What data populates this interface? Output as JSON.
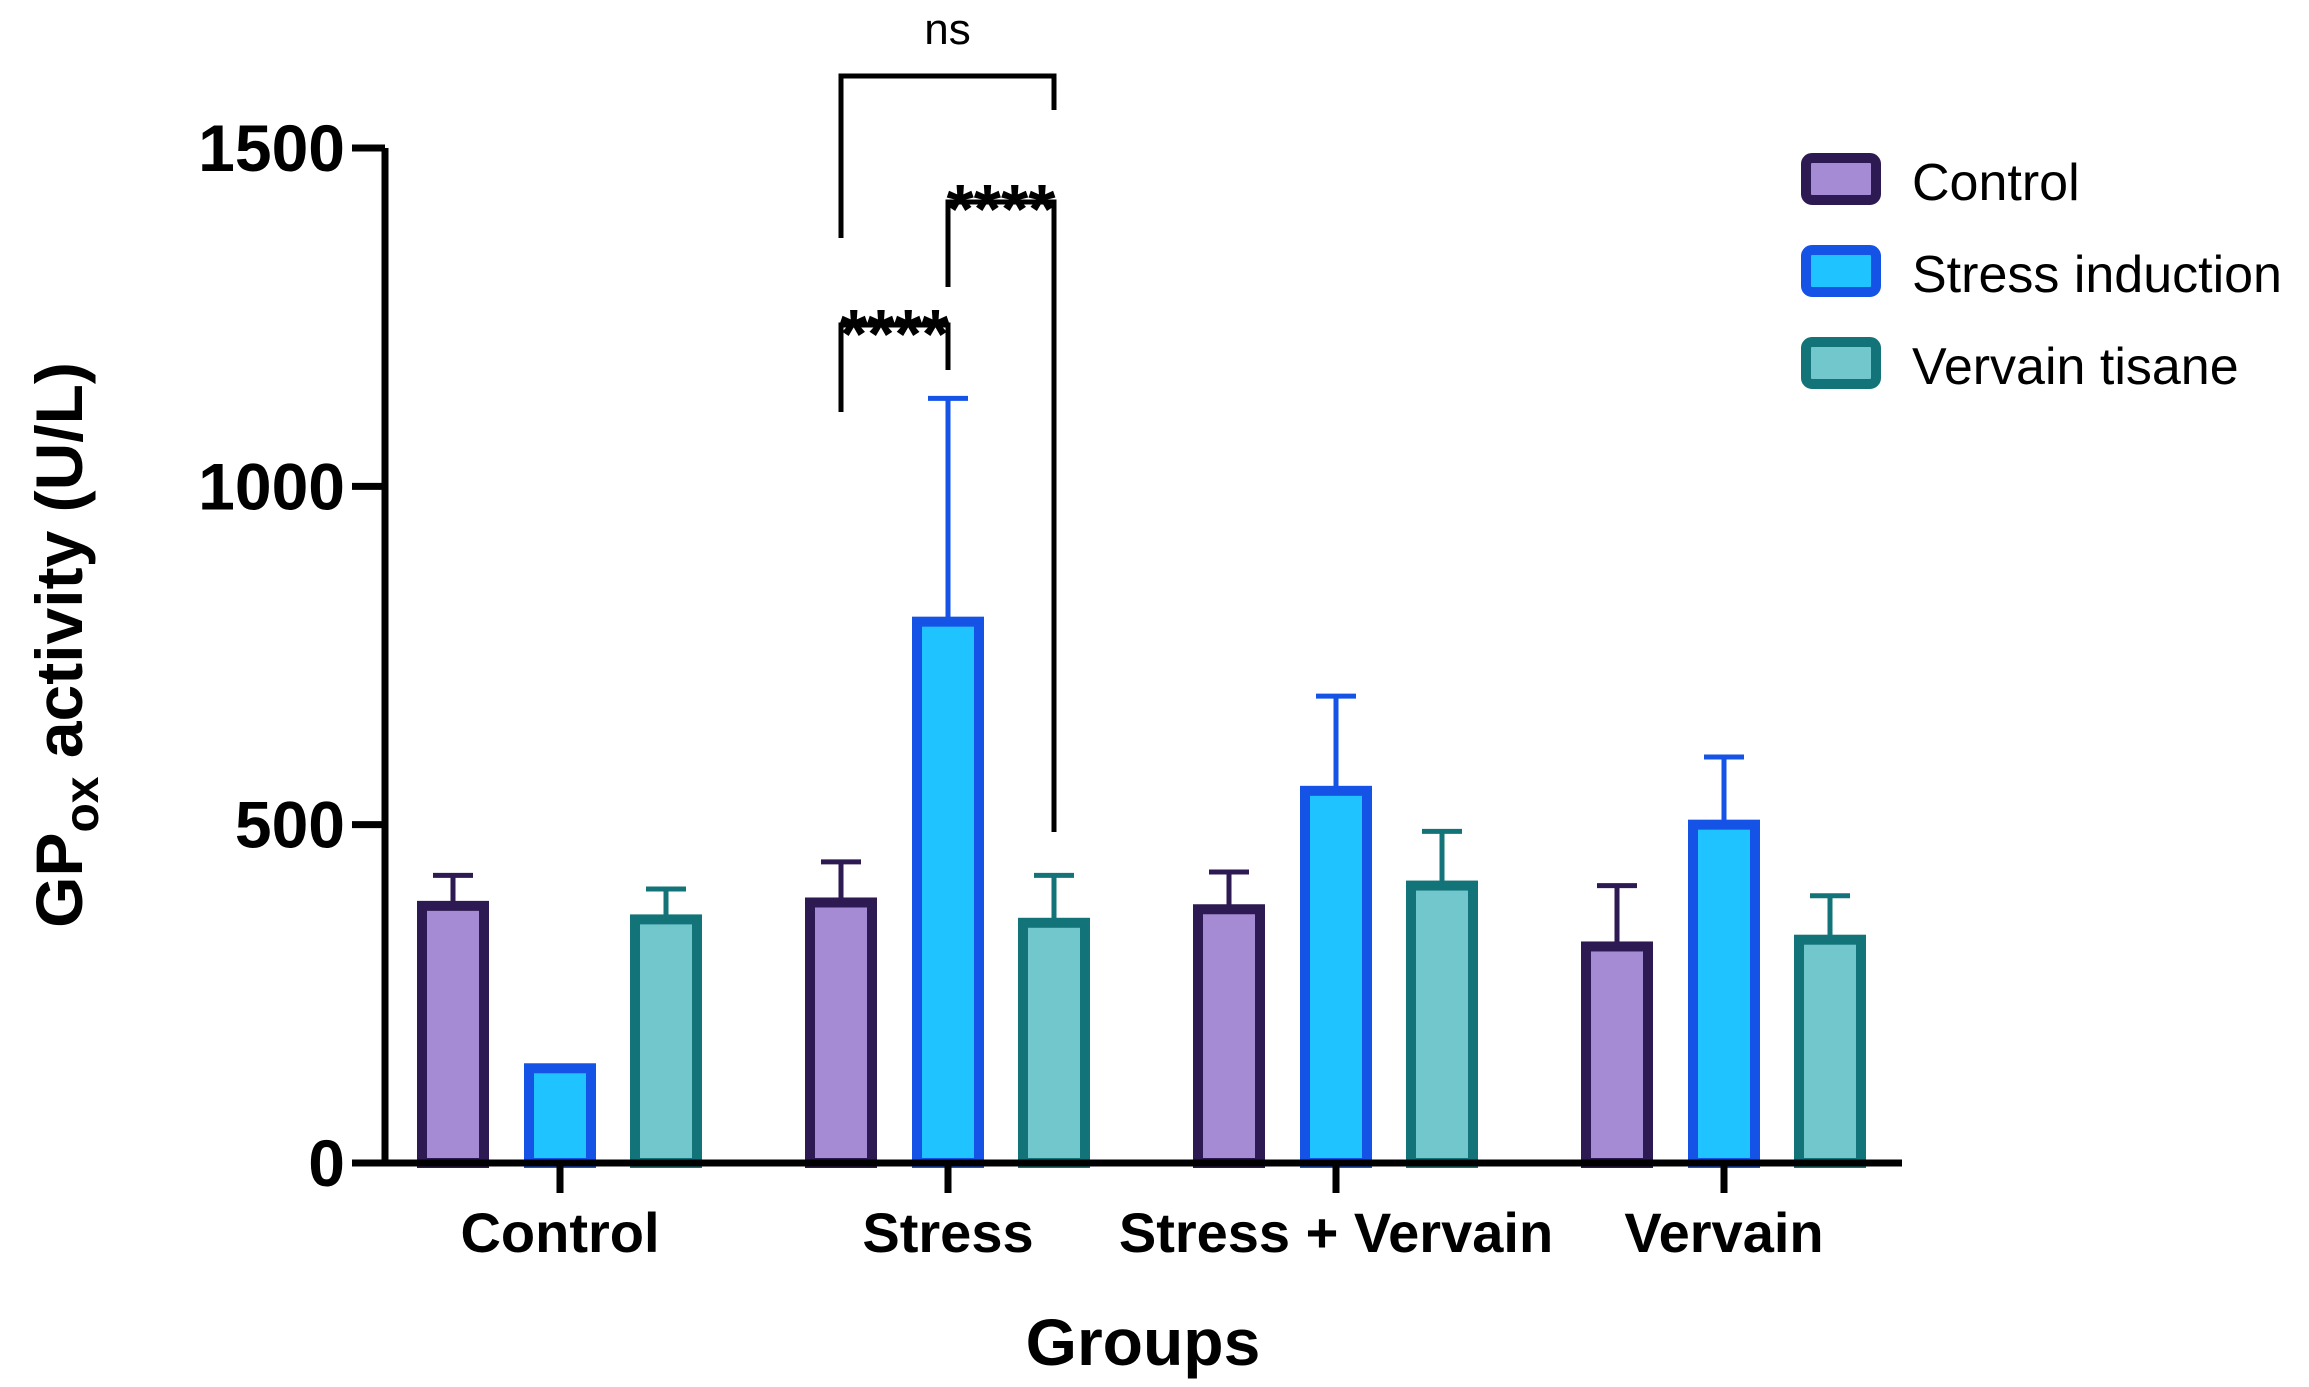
{
  "chart_data": {
    "type": "bar",
    "xlabel": "Groups",
    "ylabel_main": "GP",
    "ylabel_sub": "ox",
    "ylabel_rest": " activity (U/L)",
    "ylim": [
      0,
      1500
    ],
    "yticks": [
      "0",
      "500",
      "1000",
      "1500"
    ],
    "ytick_values": [
      0,
      500,
      1000,
      1500
    ],
    "categories": [
      "Control",
      "Stress",
      "Stress + Vervain",
      "Vervain"
    ],
    "series": [
      {
        "name": "Control",
        "fill": "#a58bd3",
        "stroke": "#2e1a52",
        "values": [
          380,
          385,
          375,
          320
        ],
        "errors": [
          45,
          60,
          55,
          90
        ]
      },
      {
        "name": "Stress induction",
        "fill": "#1ec3ff",
        "stroke": "#1553e6",
        "values": [
          140,
          800,
          550,
          500
        ],
        "errors": [
          0,
          330,
          140,
          100
        ]
      },
      {
        "name": "Vervain tisane",
        "fill": "#72c7cd",
        "stroke": "#127479",
        "values": [
          360,
          355,
          410,
          330
        ],
        "errors": [
          45,
          70,
          80,
          65
        ]
      }
    ],
    "legend": {
      "placement": "top-right"
    },
    "grid": false,
    "significance": [
      {
        "label": "****",
        "category": "Stress",
        "from_series": 0,
        "to_series": 1
      },
      {
        "label": "****",
        "category": "Stress",
        "from_series": 1,
        "to_series": 2
      },
      {
        "label": "ns",
        "category": "Stress",
        "from_series": 0,
        "to_series": 2
      }
    ]
  }
}
